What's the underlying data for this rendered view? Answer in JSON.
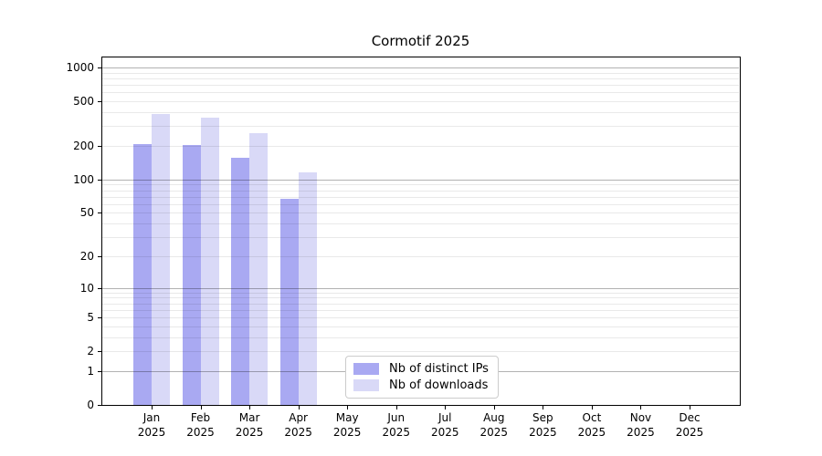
{
  "chart_data": {
    "type": "bar",
    "title": "Cormotif 2025",
    "categories": [
      "Jan",
      "Feb",
      "Mar",
      "Apr",
      "May",
      "Jun",
      "Jul",
      "Aug",
      "Sep",
      "Oct",
      "Nov",
      "Dec"
    ],
    "category_year": "2025",
    "series": [
      {
        "name": "Nb of distinct IPs",
        "color": "#a9a9f2",
        "values": [
          208,
          205,
          157,
          67,
          0,
          0,
          0,
          0,
          0,
          0,
          0,
          0
        ]
      },
      {
        "name": "Nb of downloads",
        "color": "#d9d9f7",
        "values": [
          385,
          357,
          260,
          115,
          0,
          0,
          0,
          0,
          0,
          0,
          0,
          0
        ]
      }
    ],
    "y_scale": "log10(value+1)",
    "y_ticks": [
      0,
      1,
      2,
      5,
      10,
      20,
      50,
      100,
      200,
      500,
      1000
    ],
    "y_major_gridline_values": [
      1,
      10,
      100,
      1000
    ],
    "y_minor_gridline_values": [
      2,
      3,
      4,
      5,
      6,
      7,
      8,
      9,
      20,
      30,
      40,
      50,
      60,
      70,
      80,
      90,
      200,
      300,
      400,
      500,
      600,
      700,
      800,
      900
    ],
    "ylim": [
      0,
      1150
    ],
    "grid": true,
    "legend_position": "lower center",
    "xlabel": "",
    "ylabel": ""
  }
}
